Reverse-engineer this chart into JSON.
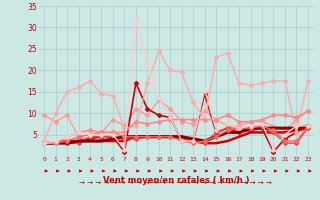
{
  "background_color": "#cce8e4",
  "grid_color": "#aaccca",
  "xlabel": "Vent moyen/en rafales ( km/h )",
  "x_ticks": [
    0,
    1,
    2,
    3,
    4,
    5,
    6,
    7,
    8,
    9,
    10,
    11,
    12,
    13,
    14,
    15,
    16,
    17,
    18,
    19,
    20,
    21,
    22,
    23
  ],
  "ylim": [
    0,
    35
  ],
  "yticks": [
    5,
    10,
    15,
    20,
    25,
    30,
    35
  ],
  "xlim": [
    -0.5,
    23.5
  ],
  "series": [
    {
      "y": [
        9.5,
        8.0,
        9.5,
        4.5,
        4.0,
        5.5,
        8.5,
        7.0,
        11.0,
        9.5,
        13.0,
        11.0,
        8.0,
        7.5,
        10.5,
        8.5,
        7.0,
        7.0,
        8.0,
        8.0,
        7.0,
        6.0,
        8.5,
        10.5
      ],
      "color": "#ff9999",
      "lw": 1.0,
      "marker": "D",
      "ms": 2.0
    },
    {
      "y": [
        3.0,
        3.0,
        3.0,
        3.5,
        4.0,
        4.5,
        4.5,
        1.0,
        17.0,
        11.0,
        9.5,
        9.0,
        3.5,
        3.5,
        14.5,
        5.5,
        6.5,
        5.5,
        6.0,
        6.5,
        1.0,
        4.0,
        5.5,
        7.0
      ],
      "color": "#cc0000",
      "lw": 1.2,
      "marker": "D",
      "ms": 2.0
    },
    {
      "y": [
        3.0,
        3.0,
        3.5,
        3.5,
        3.5,
        3.5,
        3.5,
        3.5,
        4.5,
        4.5,
        4.5,
        4.5,
        4.5,
        3.5,
        3.0,
        3.0,
        3.5,
        4.5,
        5.5,
        5.5,
        5.5,
        5.5,
        6.0,
        6.5
      ],
      "color": "#cc0000",
      "lw": 1.8,
      "marker": null,
      "ms": 0
    },
    {
      "y": [
        3.0,
        3.0,
        3.0,
        3.0,
        4.5,
        4.5,
        4.5,
        4.0,
        4.0,
        4.5,
        4.5,
        4.5,
        4.0,
        3.5,
        3.0,
        5.5,
        6.5,
        6.5,
        6.5,
        6.5,
        5.5,
        3.0,
        3.0,
        6.5
      ],
      "color": "#ee4444",
      "lw": 1.0,
      "marker": "D",
      "ms": 2.0
    },
    {
      "y": [
        3.0,
        3.0,
        3.0,
        3.5,
        3.5,
        3.5,
        4.0,
        4.5,
        4.5,
        4.5,
        4.5,
        4.5,
        4.5,
        4.0,
        3.5,
        4.5,
        5.5,
        5.5,
        6.5,
        6.5,
        6.5,
        6.5,
        6.5,
        7.0
      ],
      "color": "#880000",
      "lw": 2.2,
      "marker": null,
      "ms": 0
    },
    {
      "y": [
        3.0,
        3.0,
        3.5,
        4.5,
        5.0,
        5.5,
        5.5,
        4.5,
        4.5,
        4.5,
        4.5,
        4.5,
        3.5,
        3.0,
        3.5,
        4.5,
        6.0,
        6.5,
        6.5,
        7.0,
        6.0,
        3.5,
        3.5,
        7.0
      ],
      "color": "#ff6666",
      "lw": 1.0,
      "marker": "D",
      "ms": 2.0
    },
    {
      "y": [
        3.5,
        10.0,
        15.0,
        16.0,
        17.5,
        14.5,
        14.0,
        6.5,
        7.0,
        17.0,
        24.5,
        20.0,
        19.5,
        12.5,
        8.5,
        23.0,
        24.0,
        17.0,
        16.5,
        17.0,
        17.5,
        17.5,
        5.5,
        17.5
      ],
      "color": "#ffaaaa",
      "lw": 1.0,
      "marker": "D",
      "ms": 2.0
    },
    {
      "y": [
        3.0,
        3.0,
        4.5,
        5.5,
        6.0,
        5.5,
        5.5,
        5.5,
        8.0,
        7.5,
        8.0,
        8.5,
        8.5,
        8.5,
        8.5,
        8.5,
        9.5,
        8.0,
        8.0,
        8.5,
        9.5,
        9.5,
        9.0,
        10.5
      ],
      "color": "#ff8888",
      "lw": 1.2,
      "marker": "D",
      "ms": 2.0
    },
    {
      "y": [
        3.0,
        3.5,
        4.5,
        5.5,
        5.0,
        5.0,
        5.0,
        1.5,
        31.5,
        21.5,
        13.5,
        9.0,
        3.5,
        3.5,
        15.5,
        6.0,
        7.5,
        6.5,
        7.0,
        7.5,
        1.5,
        5.0,
        7.0,
        7.0
      ],
      "color": "#ffcccc",
      "lw": 1.0,
      "marker": "D",
      "ms": 2.0
    }
  ]
}
